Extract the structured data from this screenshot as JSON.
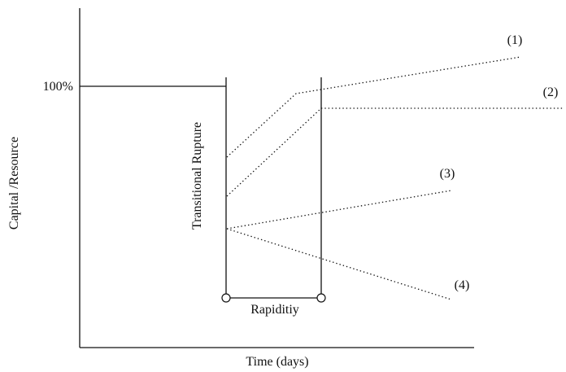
{
  "axes": {
    "y_label": "Capital /Resource",
    "x_label": "Time (days)",
    "level_label": "100%"
  },
  "annotations": {
    "rupture_label": "Transitional Rupture",
    "rapidity_label": "Rapiditiy"
  },
  "scenarios": [
    {
      "label": "(1)"
    },
    {
      "label": "(2)"
    },
    {
      "label": "(3)"
    },
    {
      "label": "(4)"
    }
  ]
}
